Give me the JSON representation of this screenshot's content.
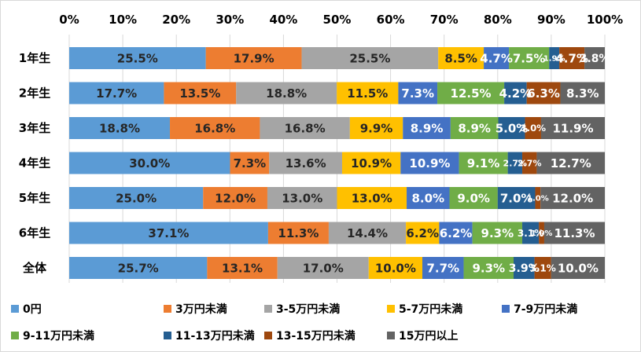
{
  "chart_data": {
    "type": "bar",
    "orientation": "horizontal",
    "stacked": true,
    "percent_stacked": true,
    "title": "",
    "xlabel": "",
    "ylabel": "",
    "xlim": [
      0,
      100
    ],
    "x_ticks": [
      "0%",
      "10%",
      "20%",
      "30%",
      "40%",
      "50%",
      "60%",
      "70%",
      "80%",
      "90%",
      "100%"
    ],
    "x_axis_position": "top",
    "grid": true,
    "legend_position": "bottom",
    "categories": [
      "1年生",
      "2年生",
      "3年生",
      "4年生",
      "5年生",
      "6年生",
      "全体"
    ],
    "series": [
      {
        "name": "0円",
        "color": "#5B9BD5",
        "values": [
          25.5,
          17.7,
          18.8,
          30.0,
          25.0,
          37.1,
          25.7
        ],
        "labels": [
          "25.5%",
          "17.7%",
          "18.8%",
          "30.0%",
          "25.0%",
          "37.1%",
          "25.7%"
        ]
      },
      {
        "name": "3万円未満",
        "color": "#ED7D31",
        "values": [
          17.9,
          13.5,
          16.8,
          7.3,
          12.0,
          11.3,
          13.1
        ],
        "labels": [
          "17.9%",
          "13.5%",
          "16.8%",
          "7.3%",
          "12.0%",
          "11.3%",
          "13.1%"
        ]
      },
      {
        "name": "3-5万円未満",
        "color": "#A5A5A5",
        "values": [
          25.5,
          18.8,
          16.8,
          13.6,
          13.0,
          14.4,
          17.0
        ],
        "labels": [
          "25.5%",
          "18.8%",
          "16.8%",
          "13.6%",
          "13.0%",
          "14.4%",
          "17.0%"
        ]
      },
      {
        "name": "5-7万円未満",
        "color": "#FFC000",
        "values": [
          8.5,
          11.5,
          9.9,
          10.9,
          13.0,
          6.2,
          10.0
        ],
        "labels": [
          "8.5%",
          "11.5%",
          "9.9%",
          "10.9%",
          "13.0%",
          "6.2%",
          "10.0%"
        ]
      },
      {
        "name": "7-9万円未満",
        "color": "#4472C4",
        "values": [
          4.7,
          7.3,
          8.9,
          10.9,
          8.0,
          6.2,
          7.7
        ],
        "labels": [
          "4.7%",
          "7.3%",
          "8.9%",
          "10.9%",
          "8.0%",
          "6.2%",
          "7.7%"
        ]
      },
      {
        "name": "9-11万円未満",
        "color": "#70AD47",
        "values": [
          7.5,
          12.5,
          8.9,
          9.1,
          9.0,
          9.3,
          9.3
        ],
        "labels": [
          "7.5%",
          "12.5%",
          "8.9%",
          "9.1%",
          "9.0%",
          "9.3%",
          "9.3%"
        ]
      },
      {
        "name": "11-13万円未満",
        "color": "#255E91",
        "values": [
          1.9,
          4.2,
          5.0,
          2.7,
          7.0,
          3.1,
          3.9
        ],
        "labels": [
          "1.9%",
          "4.2%",
          "5.0%",
          "2.7%",
          "7.0%",
          "3.1%",
          "3.9%"
        ]
      },
      {
        "name": "13-15万円未満",
        "color": "#9E480E",
        "values": [
          4.7,
          6.3,
          3.0,
          2.7,
          1.0,
          1.0,
          3.1
        ],
        "labels": [
          "4.7%",
          "6.3%",
          "3.0%",
          "2.7%",
          "1.0%",
          "1.0%",
          "3.1%"
        ]
      },
      {
        "name": "15万円以上",
        "color": "#636363",
        "values": [
          3.8,
          8.3,
          11.9,
          12.7,
          12.0,
          11.3,
          10.0
        ],
        "labels": [
          "3.8%",
          "8.3%",
          "11.9%",
          "12.7%",
          "12.0%",
          "11.3%",
          "10.0%"
        ]
      }
    ]
  }
}
